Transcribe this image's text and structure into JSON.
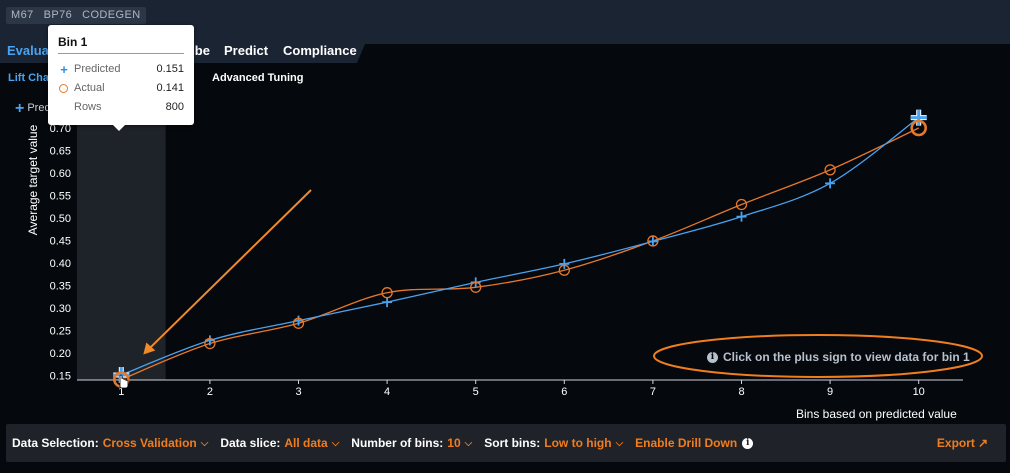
{
  "header": {
    "tags": [
      "M67",
      "BP76",
      "CODEGEN"
    ]
  },
  "nav": {
    "tabs": [
      {
        "label": "Evaluate",
        "active": true
      },
      {
        "label": "Describe",
        "active": false
      },
      {
        "label": "Predict",
        "active": false
      },
      {
        "label": "Compliance",
        "active": false
      }
    ]
  },
  "subnav": {
    "lift_chart": "Lift Chart",
    "advanced_tuning": "Advanced Tuning"
  },
  "legend": {
    "predicted": "Predicted"
  },
  "tooltip": {
    "title": "Bin 1",
    "rows": [
      {
        "label": "Predicted",
        "value": "0.151"
      },
      {
        "label": "Actual",
        "value": "0.141"
      },
      {
        "label": "Rows",
        "value": "800"
      }
    ]
  },
  "hint": "Click on the plus sign to view data for bin 1",
  "chart_data": {
    "type": "line",
    "x": [
      1,
      2,
      3,
      4,
      5,
      6,
      7,
      8,
      9,
      10
    ],
    "series": [
      {
        "name": "Predicted",
        "marker": "plus",
        "color": "#4aa3f0",
        "values": [
          0.151,
          0.228,
          0.272,
          0.313,
          0.357,
          0.398,
          0.448,
          0.503,
          0.577,
          0.723
        ]
      },
      {
        "name": "Actual",
        "marker": "circle",
        "color": "#e6782a",
        "values": [
          0.141,
          0.221,
          0.266,
          0.334,
          0.346,
          0.384,
          0.449,
          0.53,
          0.607,
          0.7
        ]
      }
    ],
    "ylabel": "Average target value",
    "xlabel": "Bins based on predicted value",
    "yticks": [
      "0.15",
      "0.20",
      "0.25",
      "0.30",
      "0.35",
      "0.40",
      "0.45",
      "0.50",
      "0.55",
      "0.60",
      "0.65",
      "0.70"
    ],
    "xticks": [
      "1",
      "2",
      "3",
      "4",
      "5",
      "6",
      "7",
      "8",
      "9",
      "10"
    ],
    "ylim": [
      0.14,
      0.74
    ],
    "xlim": [
      0.5,
      10.5
    ],
    "highlighted_bin": 1
  },
  "footer": {
    "data_selection_label": "Data Selection:",
    "data_selection_value": "Cross Validation",
    "data_slice_label": "Data slice:",
    "data_slice_value": "All data",
    "bins_label": "Number of bins:",
    "bins_value": "10",
    "sort_label": "Sort bins:",
    "sort_value": "Low to high",
    "drill_down": "Enable Drill Down",
    "export": "Export"
  },
  "colors": {
    "accent": "#f07d1e",
    "predicted": "#4aa3f0",
    "actual": "#e6782a",
    "background": "#05080d"
  }
}
